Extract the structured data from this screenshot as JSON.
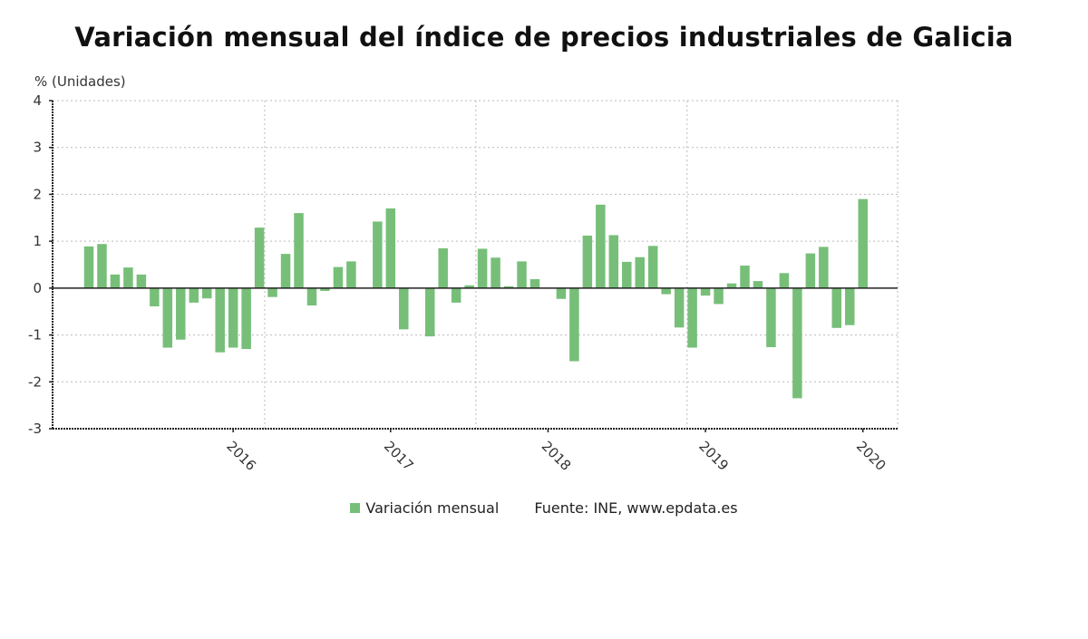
{
  "title": "Variación mensual del índice de precios industriales de Galicia",
  "legend": {
    "series_label": "Variación mensual",
    "source": "Fuente: INE, www.epdata.es"
  },
  "colors": {
    "bar": "#77bf79",
    "axis": "#222222",
    "grid": "#bbbbbb",
    "text": "#333333"
  },
  "chart_data": {
    "type": "bar",
    "title": "Variación mensual del índice de precios industriales de Galicia",
    "ylabel": "% (Unidades)",
    "xlabel": "",
    "ylim": [
      -3,
      4
    ],
    "yticks": [
      4,
      3,
      2,
      1,
      0,
      -1,
      -2,
      -3
    ],
    "xticks": [
      "2016",
      "2017",
      "2018",
      "2019",
      "2020"
    ],
    "grid": true,
    "legend_position": "bottom",
    "categories": [
      "2015-02",
      "2015-03",
      "2015-04",
      "2015-05",
      "2015-06",
      "2015-07",
      "2015-08",
      "2015-09",
      "2015-10",
      "2015-11",
      "2015-12",
      "2016-01",
      "2016-02",
      "2016-03",
      "2016-04",
      "2016-05",
      "2016-06",
      "2016-07",
      "2016-08",
      "2016-09",
      "2016-10",
      "2016-11",
      "2016-12",
      "2017-01",
      "2017-02",
      "2017-03",
      "2017-04",
      "2017-05",
      "2017-06",
      "2017-07",
      "2017-08",
      "2017-09",
      "2017-10",
      "2017-11",
      "2017-12",
      "2018-01",
      "2018-02",
      "2018-03",
      "2018-04",
      "2018-05",
      "2018-06",
      "2018-07",
      "2018-08",
      "2018-09",
      "2018-10",
      "2018-11",
      "2018-12",
      "2019-01",
      "2019-02",
      "2019-03",
      "2019-04",
      "2019-05",
      "2019-06",
      "2019-07",
      "2019-08",
      "2019-09",
      "2019-10",
      "2019-11",
      "2019-12",
      "2020-01"
    ],
    "series": [
      {
        "name": "Variación mensual",
        "values": [
          0.89,
          0.94,
          0.29,
          0.44,
          0.29,
          -0.39,
          -1.27,
          -1.1,
          -0.31,
          -0.22,
          -1.37,
          -1.27,
          -1.3,
          1.29,
          -0.19,
          0.73,
          1.6,
          -0.37,
          -0.06,
          0.45,
          0.57,
          0,
          1.42,
          1.7,
          -0.88,
          0,
          -1.03,
          0.85,
          -0.31,
          0.06,
          0.84,
          0.65,
          0.04,
          0.57,
          0.19,
          0,
          -0.23,
          -1.56,
          1.12,
          1.78,
          1.13,
          0.56,
          0.66,
          0.9,
          -0.13,
          -0.84,
          -1.27,
          -0.16,
          -0.34,
          0.1,
          0.48,
          0.15,
          -1.26,
          0.32,
          -2.35,
          0.74,
          0.88,
          -0.85,
          -0.79,
          1.9
        ]
      }
    ]
  }
}
